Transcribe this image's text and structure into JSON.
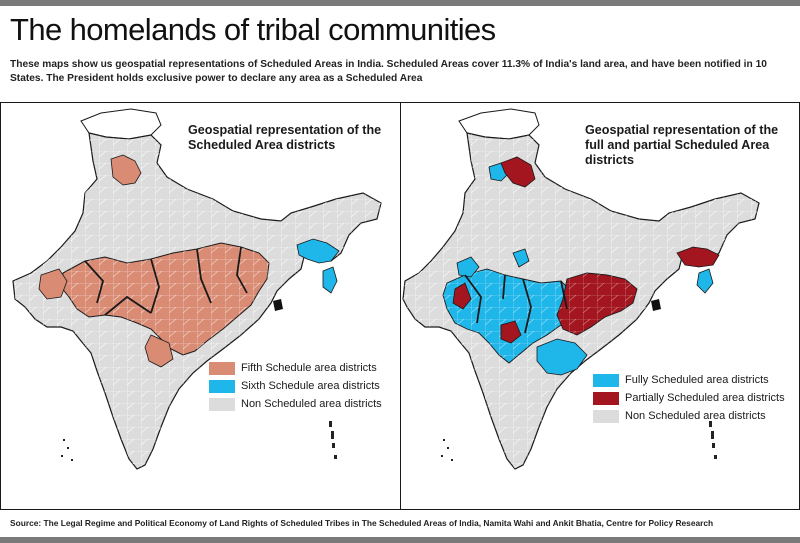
{
  "header": {
    "title": "The homelands of tribal communities",
    "subtitle": "These maps show us geospatial representations of Scheduled Areas in India. Scheduled Areas cover 11.3% of India's land area, and have been notified in 10 States. The President holds exclusive power to declare any area as a Scheduled Area"
  },
  "colors": {
    "fifth_schedule": "#d98b74",
    "sixth_schedule": "#1fb6ea",
    "non_scheduled": "#dcdcdc",
    "fully_scheduled": "#1fb6ea",
    "partially_scheduled": "#a3161f",
    "outline": "#1a1a1a",
    "kashmir_region": "#ffffff"
  },
  "maps": [
    {
      "title": "Geospatial representation of  the Scheduled Area districts",
      "legend": [
        {
          "label": "Fifth Schedule area districts",
          "color": "#d98b74"
        },
        {
          "label": "Sixth Schedule area districts",
          "color": "#1fb6ea"
        },
        {
          "label": "Non Scheduled area districts",
          "color": "#dcdcdc"
        }
      ]
    },
    {
      "title": "Geospatial representation of the full and partial Scheduled Area districts",
      "legend": [
        {
          "label": "Fully Scheduled area districts",
          "color": "#1fb6ea"
        },
        {
          "label": "Partially Scheduled area districts",
          "color": "#a3161f"
        },
        {
          "label": "Non Scheduled area districts",
          "color": "#dcdcdc"
        }
      ]
    }
  ],
  "footer": {
    "source": "Source: The Legal Regime and Political Economy of Land Rights of Scheduled Tribes in The Scheduled Areas of India, Namita Wahi and Ankit Bhatia, Centre for Policy Research"
  }
}
